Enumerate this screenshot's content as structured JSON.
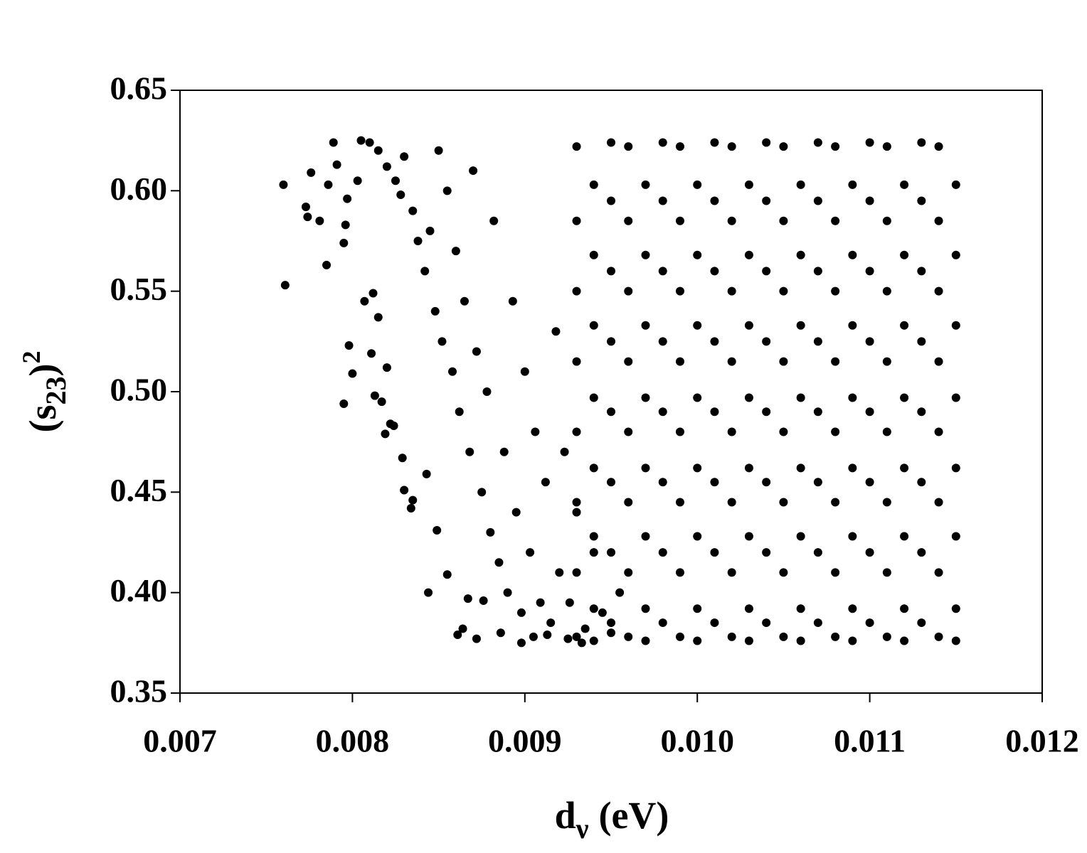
{
  "chart_data": {
    "type": "scatter",
    "x_label": {
      "symbol": "d",
      "subscript": "ν",
      "unit": "(eV)"
    },
    "y_label": {
      "open": "(s",
      "subscript": "23",
      "close": ")",
      "superscript": "2"
    },
    "xlim": [
      0.007,
      0.012
    ],
    "xticks": [
      0.007,
      0.008,
      0.009,
      {
        "value": 0.01,
        "label": "0.010"
      },
      0.011,
      0.012
    ],
    "ylim": [
      0.35,
      0.65
    ],
    "yticks": [
      0.35,
      {
        "value": 0.4,
        "label": "0.40"
      },
      0.45,
      {
        "value": 0.5,
        "label": "0.50"
      },
      0.55,
      {
        "value": 0.6,
        "label": "0.60"
      },
      0.65
    ],
    "color": "#000000",
    "x": [
      0.0076,
      0.00761,
      0.00773,
      0.00774,
      0.00776,
      0.00781,
      0.00785,
      0.00786,
      0.00789,
      0.00791,
      0.00795,
      0.00795,
      0.00796,
      0.00798,
      0.008,
      0.00797,
      0.00803,
      0.00807,
      0.00812,
      0.00811,
      0.00815,
      0.00813,
      0.00817,
      0.0082,
      0.00822,
      0.00824,
      0.00819,
      0.00829,
      0.0083,
      0.00834,
      0.00835,
      0.00843,
      0.00844,
      0.00849,
      0.00855,
      0.00861,
      0.00864,
      0.00867,
      0.00872,
      0.00876,
      0.00886,
      0.00898,
      0.00905,
      0.00913,
      0.00925,
      0.00933,
      0.00805,
      0.0081,
      0.00815,
      0.0082,
      0.00825,
      0.00828,
      0.0083,
      0.00835,
      0.00838,
      0.00842,
      0.00845,
      0.00848,
      0.0085,
      0.00852,
      0.00855,
      0.00858,
      0.0086,
      0.00862,
      0.00865,
      0.00868,
      0.0087,
      0.00872,
      0.00875,
      0.00878,
      0.0088,
      0.00882,
      0.00885,
      0.00888,
      0.0089,
      0.00893,
      0.00895,
      0.00898,
      0.009,
      0.00903,
      0.00906,
      0.00909,
      0.00912,
      0.00915,
      0.00918,
      0.0092,
      0.00923,
      0.00926,
      0.0093,
      0.00935,
      0.0094,
      0.00945,
      0.0095,
      0.00955,
      0.0093,
      0.0093,
      0.0093,
      0.0093,
      0.0093,
      0.0093,
      0.0093,
      0.0093,
      0.0094,
      0.0094,
      0.0094,
      0.0094,
      0.0094,
      0.0094,
      0.0094,
      0.0094,
      0.0095,
      0.0095,
      0.0095,
      0.0095,
      0.0095,
      0.0095,
      0.0095,
      0.0095,
      0.0096,
      0.0096,
      0.0096,
      0.0096,
      0.0096,
      0.0096,
      0.0096,
      0.0096,
      0.0097,
      0.0097,
      0.0097,
      0.0097,
      0.0097,
      0.0097,
      0.0097,
      0.0097,
      0.0098,
      0.0098,
      0.0098,
      0.0098,
      0.0098,
      0.0098,
      0.0098,
      0.0098,
      0.0099,
      0.0099,
      0.0099,
      0.0099,
      0.0099,
      0.0099,
      0.0099,
      0.0099,
      0.01,
      0.01,
      0.01,
      0.01,
      0.01,
      0.01,
      0.01,
      0.01,
      0.0101,
      0.0101,
      0.0101,
      0.0101,
      0.0101,
      0.0101,
      0.0101,
      0.0101,
      0.0102,
      0.0102,
      0.0102,
      0.0102,
      0.0102,
      0.0102,
      0.0102,
      0.0102,
      0.0103,
      0.0103,
      0.0103,
      0.0103,
      0.0103,
      0.0103,
      0.0103,
      0.0103,
      0.0104,
      0.0104,
      0.0104,
      0.0104,
      0.0104,
      0.0104,
      0.0104,
      0.0104,
      0.0105,
      0.0105,
      0.0105,
      0.0105,
      0.0105,
      0.0105,
      0.0105,
      0.0105,
      0.0106,
      0.0106,
      0.0106,
      0.0106,
      0.0106,
      0.0106,
      0.0106,
      0.0106,
      0.0107,
      0.0107,
      0.0107,
      0.0107,
      0.0107,
      0.0107,
      0.0107,
      0.0107,
      0.0108,
      0.0108,
      0.0108,
      0.0108,
      0.0108,
      0.0108,
      0.0108,
      0.0108,
      0.0109,
      0.0109,
      0.0109,
      0.0109,
      0.0109,
      0.0109,
      0.0109,
      0.0109,
      0.011,
      0.011,
      0.011,
      0.011,
      0.011,
      0.011,
      0.011,
      0.011,
      0.0111,
      0.0111,
      0.0111,
      0.0111,
      0.0111,
      0.0111,
      0.0111,
      0.0111,
      0.0112,
      0.0112,
      0.0112,
      0.0112,
      0.0112,
      0.0112,
      0.0112,
      0.0112,
      0.0113,
      0.0113,
      0.0113,
      0.0113,
      0.0113,
      0.0113,
      0.0113,
      0.0113,
      0.0114,
      0.0114,
      0.0114,
      0.0114,
      0.0114,
      0.0114,
      0.0114,
      0.0114,
      0.0115,
      0.0115,
      0.0115,
      0.0115,
      0.0115,
      0.0115,
      0.0115,
      0.0115
    ],
    "values": [
      0.603,
      0.553,
      0.592,
      0.587,
      0.609,
      0.585,
      0.563,
      0.603,
      0.624,
      0.613,
      0.574,
      0.494,
      0.583,
      0.523,
      0.509,
      0.596,
      0.605,
      0.545,
      0.549,
      0.519,
      0.537,
      0.498,
      0.495,
      0.512,
      0.484,
      0.483,
      0.479,
      0.467,
      0.451,
      0.442,
      0.446,
      0.459,
      0.4,
      0.431,
      0.409,
      0.379,
      0.382,
      0.397,
      0.377,
      0.396,
      0.38,
      0.375,
      0.378,
      0.379,
      0.377,
      0.375,
      0.625,
      0.624,
      0.62,
      0.612,
      0.605,
      0.598,
      0.617,
      0.59,
      0.575,
      0.56,
      0.58,
      0.54,
      0.62,
      0.525,
      0.6,
      0.51,
      0.57,
      0.49,
      0.545,
      0.47,
      0.61,
      0.52,
      0.45,
      0.5,
      0.43,
      0.585,
      0.415,
      0.47,
      0.4,
      0.545,
      0.44,
      0.39,
      0.51,
      0.42,
      0.48,
      0.395,
      0.455,
      0.385,
      0.53,
      0.41,
      0.47,
      0.395,
      0.44,
      0.382,
      0.42,
      0.39,
      0.38,
      0.4,
      0.378,
      0.41,
      0.445,
      0.48,
      0.515,
      0.55,
      0.585,
      0.622,
      0.392,
      0.428,
      0.462,
      0.497,
      0.533,
      0.568,
      0.603,
      0.376,
      0.385,
      0.42,
      0.455,
      0.49,
      0.525,
      0.56,
      0.595,
      0.624,
      0.378,
      0.41,
      0.445,
      0.48,
      0.515,
      0.55,
      0.585,
      0.622,
      0.392,
      0.428,
      0.462,
      0.497,
      0.533,
      0.568,
      0.603,
      0.376,
      0.385,
      0.42,
      0.455,
      0.49,
      0.525,
      0.56,
      0.595,
      0.624,
      0.378,
      0.41,
      0.445,
      0.48,
      0.515,
      0.55,
      0.585,
      0.622,
      0.392,
      0.428,
      0.462,
      0.497,
      0.533,
      0.568,
      0.603,
      0.376,
      0.385,
      0.42,
      0.455,
      0.49,
      0.525,
      0.56,
      0.595,
      0.624,
      0.378,
      0.41,
      0.445,
      0.48,
      0.515,
      0.55,
      0.585,
      0.622,
      0.392,
      0.428,
      0.462,
      0.497,
      0.533,
      0.568,
      0.603,
      0.376,
      0.385,
      0.42,
      0.455,
      0.49,
      0.525,
      0.56,
      0.595,
      0.624,
      0.378,
      0.41,
      0.445,
      0.48,
      0.515,
      0.55,
      0.585,
      0.622,
      0.392,
      0.428,
      0.462,
      0.497,
      0.533,
      0.568,
      0.603,
      0.376,
      0.385,
      0.42,
      0.455,
      0.49,
      0.525,
      0.56,
      0.595,
      0.624,
      0.378,
      0.41,
      0.445,
      0.48,
      0.515,
      0.55,
      0.585,
      0.622,
      0.392,
      0.428,
      0.462,
      0.497,
      0.533,
      0.568,
      0.603,
      0.376,
      0.385,
      0.42,
      0.455,
      0.49,
      0.525,
      0.56,
      0.595,
      0.624,
      0.378,
      0.41,
      0.445,
      0.48,
      0.515,
      0.55,
      0.585,
      0.622,
      0.392,
      0.428,
      0.462,
      0.497,
      0.533,
      0.568,
      0.603,
      0.376,
      0.385,
      0.42,
      0.455,
      0.49,
      0.525,
      0.56,
      0.595,
      0.624,
      0.378,
      0.41,
      0.445,
      0.48,
      0.515,
      0.55,
      0.585,
      0.622,
      0.392,
      0.428,
      0.462,
      0.497,
      0.533,
      0.568,
      0.603,
      0.376
    ]
  }
}
